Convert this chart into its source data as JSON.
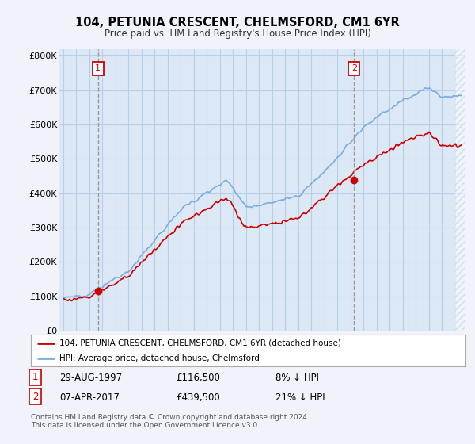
{
  "title1": "104, PETUNIA CRESCENT, CHELMSFORD, CM1 6YR",
  "title2": "Price paid vs. HM Land Registry's House Price Index (HPI)",
  "ylabel_ticks": [
    "£0",
    "£100K",
    "£200K",
    "£300K",
    "£400K",
    "£500K",
    "£600K",
    "£700K",
    "£800K"
  ],
  "ytick_values": [
    0,
    100000,
    200000,
    300000,
    400000,
    500000,
    600000,
    700000,
    800000
  ],
  "ylim": [
    0,
    820000
  ],
  "hpi_color": "#7aade0",
  "price_color": "#cc0000",
  "marker1_date": 1997.66,
  "marker1_price": 116500,
  "marker2_date": 2017.27,
  "marker2_price": 439500,
  "legend_line1": "104, PETUNIA CRESCENT, CHELMSFORD, CM1 6YR (detached house)",
  "legend_line2": "HPI: Average price, detached house, Chelmsford",
  "annot1_index": "1",
  "annot1_date": "29-AUG-1997",
  "annot1_price": "£116,500",
  "annot1_pct": "8% ↓ HPI",
  "annot2_index": "2",
  "annot2_date": "07-APR-2017",
  "annot2_price": "£439,500",
  "annot2_pct": "21% ↓ HPI",
  "footnote": "Contains HM Land Registry data © Crown copyright and database right 2024.\nThis data is licensed under the Open Government Licence v3.0.",
  "background_color": "#f0f4fa",
  "plot_bg_color": "#dce8f5",
  "grid_color": "#b8cfe8",
  "hatch_color": "#b8cfe8"
}
